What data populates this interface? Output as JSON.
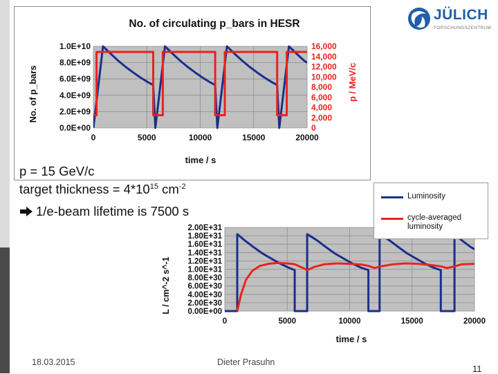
{
  "header": {
    "logo_text": "JÜLICH",
    "logo_subtext": "FORSCHUNGSZENTRUM"
  },
  "info": {
    "momentum": "p = 15 GeV/c",
    "thickness_prefix": "target thickness = 4*10",
    "thickness_exp": "15",
    "thickness_unit": " cm",
    "thickness_unit_exp": "-2",
    "lifetime": "1/e-beam lifetime is 7500 s"
  },
  "footer": {
    "date": "18.03.2015",
    "author": "Dieter Prasuhn",
    "page": "11"
  },
  "colors": {
    "blue": "#1a2f8c",
    "red": "#e8231d",
    "plot_bg": "#c0c0c0",
    "logo": "#1f5fa8"
  },
  "chart_data": [
    {
      "type": "line",
      "title": "No. of circulating p_bars in HESR",
      "xlabel": "time / s",
      "ylabel": "No. of p_bars",
      "y2label": "p / MeV/c",
      "xlim": [
        0,
        20000
      ],
      "ylim": [
        0,
        10000000000
      ],
      "y2lim": [
        0,
        16000
      ],
      "x_ticks": [
        "0",
        "5000",
        "10000",
        "15000",
        "20000"
      ],
      "y_ticks": [
        "0.0E+00",
        "2.0E+09",
        "4.0E+09",
        "6.0E+09",
        "8.0E+09",
        "1.0E+10"
      ],
      "y2_ticks": [
        "0",
        "2,000",
        "4,000",
        "6,000",
        "8,000",
        "10,000",
        "12,000",
        "14,000",
        "16,000"
      ],
      "grid": true,
      "series": [
        {
          "axis": "y",
          "color": "blue",
          "x": [
            0,
            900,
            1600,
            2300,
            3000,
            3700,
            4400,
            5100,
            5600,
            5800,
            6700,
            7400,
            8100,
            8800,
            9500,
            10200,
            10900,
            11400,
            11600,
            12500,
            13200,
            13900,
            14600,
            15300,
            16000,
            16700,
            17200,
            17400,
            18300,
            19000,
            19700,
            20000
          ],
          "y": [
            0,
            10000000000,
            9110000000,
            8260000000,
            7500000000,
            6810000000,
            6180000000,
            5610000000,
            5250000000,
            0,
            10000000000,
            9110000000,
            8260000000,
            7500000000,
            6810000000,
            6180000000,
            5610000000,
            5250000000,
            0,
            10000000000,
            9110000000,
            8260000000,
            7500000000,
            6810000000,
            6180000000,
            5610000000,
            5250000000,
            0,
            10000000000,
            9110000000,
            8260000000,
            8000000000
          ]
        },
        {
          "axis": "y2",
          "color": "red",
          "x": [
            0,
            300,
            300,
            1000,
            1000,
            5600,
            5600,
            6500,
            6500,
            11400,
            11400,
            12300,
            12300,
            17200,
            17200,
            18100,
            18100,
            20000
          ],
          "y": [
            2500,
            2500,
            14900,
            14900,
            14900,
            14900,
            2500,
            2500,
            14900,
            14900,
            2500,
            2500,
            14900,
            14900,
            2500,
            2500,
            14900,
            14900
          ]
        }
      ]
    },
    {
      "type": "line",
      "xlabel": "time / s",
      "ylabel": "L / cm^-2 s^-1",
      "xlim": [
        0,
        20000
      ],
      "ylim": [
        0,
        20000000000000000000000000000000
      ],
      "x_ticks": [
        "0",
        "5000",
        "10000",
        "15000",
        "20000"
      ],
      "y_ticks": [
        "0.00E+00",
        "2.00E+30",
        "4.00E+30",
        "6.00E+30",
        "8.00E+30",
        "1.00E+31",
        "1.20E+31",
        "1.40E+31",
        "1.60E+31",
        "1.80E+31",
        "2.00E+31"
      ],
      "grid": true,
      "legend": "top-right",
      "series": [
        {
          "name": "Luminosity",
          "color": "blue",
          "x": [
            0,
            1000,
            1000,
            1600,
            2300,
            3000,
            3700,
            4400,
            5100,
            5600,
            5600,
            6600,
            6600,
            7400,
            8100,
            8800,
            9500,
            10200,
            10900,
            11500,
            11500,
            12400,
            12400,
            13200,
            13900,
            14600,
            15300,
            16000,
            16700,
            17300,
            17300,
            18400,
            18400,
            19000,
            19700,
            20000
          ],
          "y": [
            0,
            0,
            18400000000000000000000000000000,
            16900000000000000000000000000000,
            15300000000000000000000000000000,
            13800000000000000000000000000000,
            12600000000000000000000000000000,
            11400000000000000000000000000000,
            10400000000000000000000000000000,
            9800000000000000000000000000000,
            0,
            0,
            18400000000000000000000000000000,
            16900000000000000000000000000000,
            15300000000000000000000000000000,
            13800000000000000000000000000000,
            12600000000000000000000000000000,
            11400000000000000000000000000000,
            10400000000000000000000000000000,
            9800000000000000000000000000000,
            0,
            0,
            18400000000000000000000000000000,
            16900000000000000000000000000000,
            15300000000000000000000000000000,
            13800000000000000000000000000000,
            12600000000000000000000000000000,
            11400000000000000000000000000000,
            10400000000000000000000000000000,
            9800000000000000000000000000000,
            0,
            0,
            18400000000000000000000000000000,
            16900000000000000000000000000000,
            15300000000000000000000000000000,
            14800000000000000000000000000000
          ]
        },
        {
          "name": "cycle-averaged luminosity",
          "color": "red",
          "x": [
            1000,
            1300,
            1700,
            2200,
            2800,
            3500,
            4200,
            5000,
            5600,
            6200,
            6600,
            7200,
            8000,
            9000,
            10000,
            11000,
            11500,
            12000,
            12500,
            13500,
            14500,
            15500,
            16500,
            17300,
            17800,
            18400,
            19000,
            20000
          ],
          "y": [
            0,
            4000000000000000000000000000000,
            7500000000000000000000000000000,
            9600000000000000000000000000000,
            10800000000000000000000000000000,
            11300000000000000000000000000000,
            11500000000000000000000000000000,
            11400000000000000000000000000000,
            11200000000000000000000000000000,
            10400000000000000000000000000000,
            9800000000000000000000000000000,
            10600000000000000000000000000000,
            11200000000000000000000000000000,
            11400000000000000000000000000000,
            11300000000000000000000000000000,
            11100000000000000000000000000000,
            10800000000000000000000000000000,
            10300000000000000000000000000000,
            10700000000000000000000000000000,
            11200000000000000000000000000000,
            11400000000000000000000000000000,
            11300000000000000000000000000000,
            11000000000000000000000000000000,
            10700000000000000000000000000000,
            10300000000000000000000000000000,
            10700000000000000000000000000000,
            11200000000000000000000000000000,
            11300000000000000000000000000000
          ]
        }
      ]
    }
  ]
}
